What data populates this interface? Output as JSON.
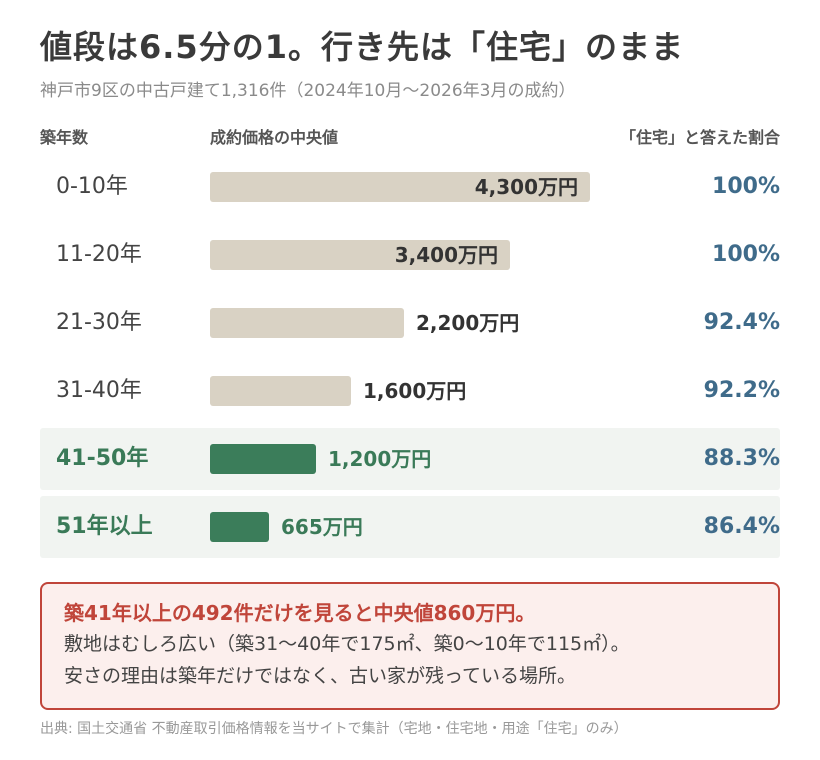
{
  "title": "値段は6.5分の1。行き先は「住宅」のまま",
  "subtitle": "神戸市9区の中古戸建て1,316件（2024年10月〜2026年3月の成約）",
  "headers": {
    "age": "築年数",
    "price": "成約価格の中央値",
    "ratio": "「住宅」と答えた割合"
  },
  "chart_data": {
    "type": "bar",
    "categories": [
      "0-10年",
      "11-20年",
      "21-30年",
      "31-40年",
      "41-50年",
      "51年以上"
    ],
    "values": [
      4300,
      3400,
      2200,
      1600,
      1200,
      665
    ],
    "value_labels": [
      "4,300万円",
      "3,400万円",
      "2,200万円",
      "1,600万円",
      "1,200万円",
      "665万円"
    ],
    "ratio_labels": [
      "100%",
      "100%",
      "92.4%",
      "92.2%",
      "88.3%",
      "86.4%"
    ],
    "ratios": [
      100,
      100,
      92.4,
      92.2,
      88.3,
      86.4
    ],
    "highlighted": [
      false,
      false,
      false,
      false,
      true,
      true
    ],
    "colors": {
      "base": "#d9d2c4",
      "highlight": "#3b7d5a",
      "ratio": "#3f6b8a",
      "highlight_text": "#3a7a58"
    }
  },
  "callout": {
    "headline": "築41年以上の492件だけを見ると中央値860万円。",
    "line1": "敷地はむしろ広い（築31〜40年で175㎡、築0〜10年で115㎡）。",
    "line2": "安さの理由は築年だけではなく、古い家が残っている場所。",
    "accent": "#c0453a"
  },
  "source": "出典: 国土交通省 不動産取引価格情報を当サイトで集計（宅地・住宅地・用途「住宅」のみ）"
}
